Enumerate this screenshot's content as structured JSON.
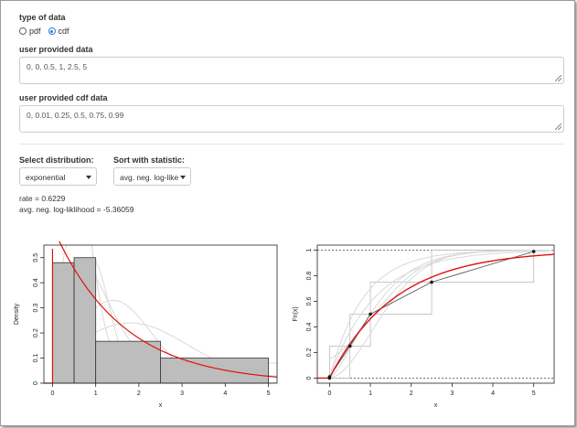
{
  "data_type": {
    "label": "type of data",
    "options": [
      {
        "label": "pdf",
        "selected": false
      },
      {
        "label": "cdf",
        "selected": true
      }
    ]
  },
  "user_data": {
    "label": "user provided data",
    "value": "0, 0, 0.5, 1, 2.5, 5"
  },
  "user_cdf": {
    "label": "user provided cdf data",
    "value": "0, 0.01, 0.25, 0.5, 0.75, 0.99"
  },
  "distribution": {
    "label": "Select distribution:",
    "value": "exponential"
  },
  "sort": {
    "label": "Sort with statistic:",
    "value": "avg. neg. log-like"
  },
  "results": {
    "rate": "rate = 0.6229",
    "loglik": "avg. neg. log-liklihood = -5.36059"
  },
  "colors": {
    "fit": "#e01010",
    "bars": "#bdbdbd",
    "light_curves": "#d9d9d9",
    "accent": "#2a7ae2"
  },
  "chart_data": [
    {
      "type": "bar",
      "title": "",
      "xlabel": "x",
      "ylabel": "Density",
      "xlim": [
        -0.2,
        5.2
      ],
      "ylim": [
        0,
        0.55
      ],
      "x_ticks": [
        0,
        1,
        2,
        3,
        4,
        5
      ],
      "y_ticks": [
        0.0,
        0.1,
        0.2,
        0.3,
        0.4,
        0.5
      ],
      "histogram": [
        {
          "x0": 0,
          "x1": 0.5,
          "density": 0.48
        },
        {
          "x0": 0.5,
          "x1": 1,
          "density": 0.5
        },
        {
          "x0": 1,
          "x1": 2.5,
          "density": 0.167
        },
        {
          "x0": 2.5,
          "x1": 5,
          "density": 0.1
        }
      ],
      "fit_rate": 0.6229
    },
    {
      "type": "line",
      "title": "",
      "xlabel": "x",
      "ylabel": "Fn(x)",
      "xlim": [
        -0.3,
        5.5
      ],
      "ylim": [
        0,
        1.0
      ],
      "x_ticks": [
        0,
        1,
        2,
        3,
        4,
        5
      ],
      "y_ticks": [
        0.0,
        0.2,
        0.4,
        0.6,
        0.8,
        1.0
      ],
      "points": {
        "x": [
          0,
          0,
          0.5,
          1,
          2.5,
          5
        ],
        "y": [
          0,
          0.01,
          0.25,
          0.5,
          0.75,
          0.99
        ]
      },
      "ecdf_steps": [
        {
          "x0": 0,
          "x1": 0.5,
          "y": 0.25
        },
        {
          "x0": 0.5,
          "x1": 1,
          "y": 0.5
        },
        {
          "x0": 1,
          "x1": 2.5,
          "y": 0.75
        },
        {
          "x0": 2.5,
          "x1": 5,
          "y": 1.0
        }
      ],
      "fit_rate": 0.6229
    }
  ]
}
